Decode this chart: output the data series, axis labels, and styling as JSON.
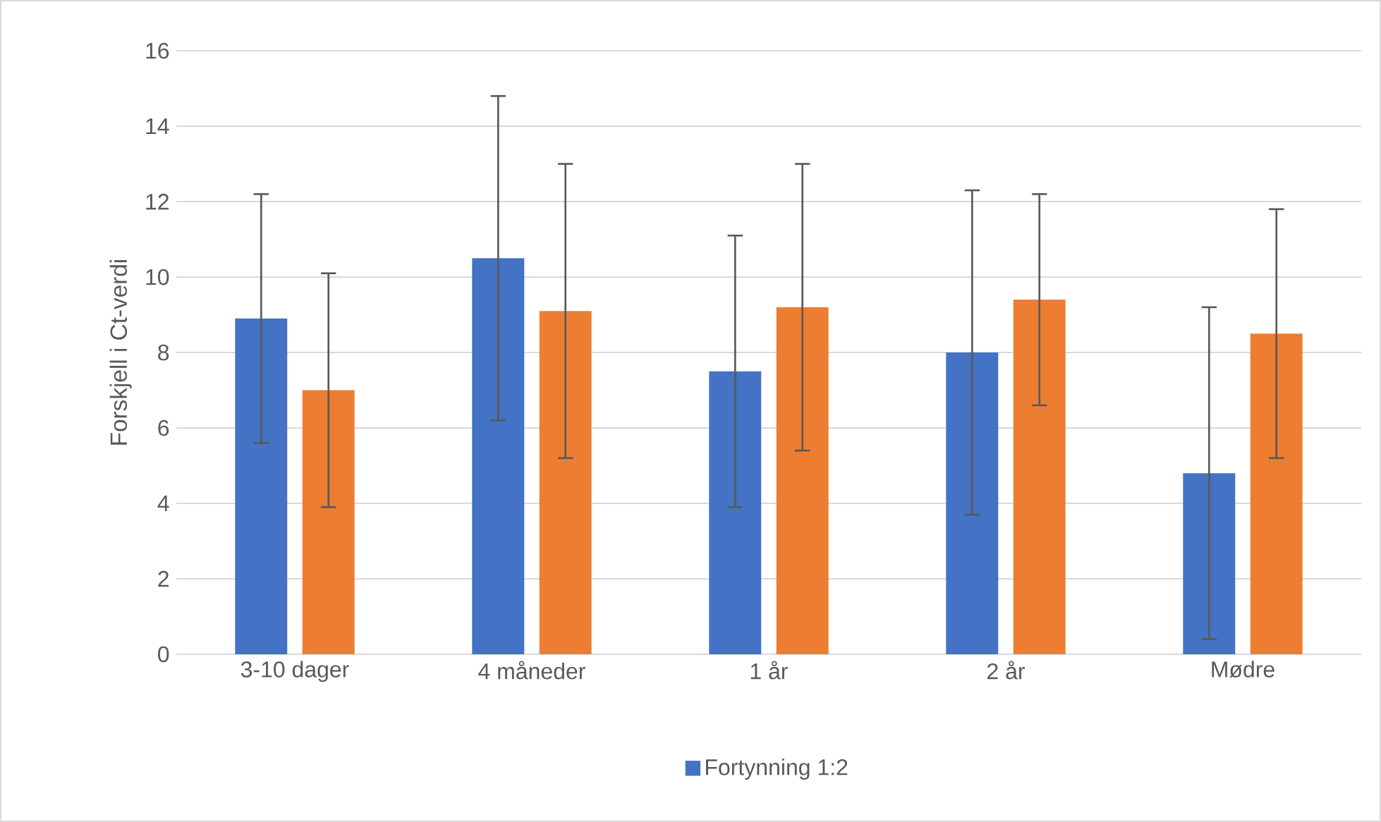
{
  "chart_data": {
    "type": "bar",
    "ylabel": "Forskjell i Ct-verdi",
    "categories": [
      "3-10 dager",
      "4 måneder",
      "1 år",
      "2 år",
      "Mødre"
    ],
    "series": [
      {
        "name": "Fortynning 1:2",
        "color": "#4472c4",
        "values": [
          8.9,
          10.5,
          7.5,
          8.0,
          4.8
        ],
        "errors": [
          3.3,
          4.3,
          3.6,
          4.3,
          4.4
        ]
      },
      {
        "color": "#ed7d31",
        "values": [
          7.0,
          9.1,
          9.2,
          9.4,
          8.5
        ],
        "errors": [
          3.1,
          3.9,
          3.8,
          2.8,
          3.3
        ]
      }
    ],
    "ylim": [
      0,
      16
    ],
    "yticks": [
      0,
      2,
      4,
      6,
      8,
      10,
      12,
      14,
      16
    ],
    "grid": "y",
    "legend": "bottom"
  }
}
